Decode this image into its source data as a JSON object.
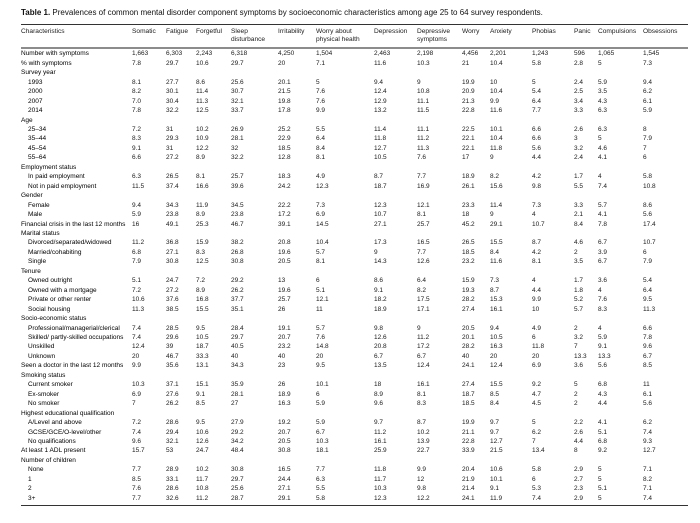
{
  "title": {
    "label": "Table 1.",
    "text": " Prevalences of common mental disorder component symptoms by socioeconomic characteristics among age 25 to 64 survey respondents."
  },
  "table": {
    "columns": [
      {
        "key": "characteristics",
        "label": "Characteristics"
      },
      {
        "key": "somatic",
        "label": "Somatic"
      },
      {
        "key": "fatigue",
        "label": "Fatigue"
      },
      {
        "key": "forgetful",
        "label": "Forgetful"
      },
      {
        "key": "sleep-disturbance",
        "label": "Sleep disturbance"
      },
      {
        "key": "irritability",
        "label": "Irritability"
      },
      {
        "key": "worry-physical-health",
        "label": "Worry about physical health"
      },
      {
        "key": "depression",
        "label": "Depression"
      },
      {
        "key": "depressive-symptoms",
        "label": "Depressive symptoms"
      },
      {
        "key": "worry",
        "label": "Worry"
      },
      {
        "key": "anxiety",
        "label": "Anxiety"
      },
      {
        "key": "phobias",
        "label": "Phobias"
      },
      {
        "key": "panic",
        "label": "Panic"
      },
      {
        "key": "compulsions",
        "label": "Compulsions"
      },
      {
        "key": "obsessions",
        "label": "Obsessions"
      }
    ],
    "rows": [
      {
        "label": "Number with symptoms",
        "values": [
          "1,663",
          "6,303",
          "2,243",
          "6,318",
          "4,250",
          "1,504",
          "2,463",
          "2,198",
          "4,456",
          "2,201",
          "1,243",
          "596",
          "1,065",
          "1,545"
        ]
      },
      {
        "label": "% with symptoms",
        "values": [
          "7.8",
          "29.7",
          "10.6",
          "29.7",
          "20",
          "7.1",
          "11.6",
          "10.3",
          "21",
          "10.4",
          "5.8",
          "2.8",
          "5",
          "7.3"
        ]
      },
      {
        "label": "Survey year",
        "section": true
      },
      {
        "label": "1993",
        "indent": true,
        "values": [
          "8.1",
          "27.7",
          "8.6",
          "25.6",
          "20.1",
          "5",
          "9.4",
          "9",
          "19.9",
          "10",
          "5",
          "2.4",
          "5.9",
          "9.4"
        ]
      },
      {
        "label": "2000",
        "indent": true,
        "values": [
          "8.2",
          "30.1",
          "11.4",
          "30.7",
          "21.5",
          "7.6",
          "12.4",
          "10.8",
          "20.9",
          "10.4",
          "5.4",
          "2.5",
          "3.5",
          "6.2"
        ]
      },
      {
        "label": "2007",
        "indent": true,
        "values": [
          "7.0",
          "30.4",
          "11.3",
          "32.1",
          "19.8",
          "7.6",
          "12.9",
          "11.1",
          "21.3",
          "9.9",
          "6.4",
          "3.4",
          "4.3",
          "6.1"
        ]
      },
      {
        "label": "2014",
        "indent": true,
        "values": [
          "7.8",
          "32.2",
          "12.5",
          "33.7",
          "17.8",
          "9.9",
          "13.2",
          "11.5",
          "22.8",
          "11.6",
          "7.7",
          "3.3",
          "6.3",
          "5.9"
        ]
      },
      {
        "label": "Age",
        "section": true
      },
      {
        "label": "25–34",
        "indent": true,
        "values": [
          "7.2",
          "31",
          "10.2",
          "26.9",
          "25.2",
          "5.5",
          "11.4",
          "11.1",
          "22.5",
          "10.1",
          "6.6",
          "2.6",
          "6.3",
          "8"
        ]
      },
      {
        "label": "35–44",
        "indent": true,
        "values": [
          "8.3",
          "29.3",
          "10.9",
          "28.1",
          "22.9",
          "6.4",
          "11.8",
          "11.2",
          "22.1",
          "10.4",
          "6.6",
          "3",
          "5",
          "7.9"
        ]
      },
      {
        "label": "45–54",
        "indent": true,
        "values": [
          "9.1",
          "31",
          "12.2",
          "32",
          "18.5",
          "8.4",
          "12.7",
          "11.3",
          "22.1",
          "11.8",
          "5.6",
          "3.2",
          "4.6",
          "7"
        ]
      },
      {
        "label": "55–64",
        "indent": true,
        "values": [
          "6.6",
          "27.2",
          "8.9",
          "32.2",
          "12.8",
          "8.1",
          "10.5",
          "7.6",
          "17",
          "9",
          "4.4",
          "2.4",
          "4.1",
          "6"
        ]
      },
      {
        "label": "Employment status",
        "section": true
      },
      {
        "label": "In paid employment",
        "indent": true,
        "values": [
          "6.3",
          "26.5",
          "8.1",
          "25.7",
          "18.3",
          "4.9",
          "8.7",
          "7.7",
          "18.9",
          "8.2",
          "4.2",
          "1.7",
          "4",
          "5.8"
        ]
      },
      {
        "label": "Not in paid employment",
        "indent": true,
        "values": [
          "11.5",
          "37.4",
          "16.6",
          "39.6",
          "24.2",
          "12.3",
          "18.7",
          "16.9",
          "26.1",
          "15.6",
          "9.8",
          "5.5",
          "7.4",
          "10.8"
        ]
      },
      {
        "label": "Gender",
        "section": true
      },
      {
        "label": "Female",
        "indent": true,
        "values": [
          "9.4",
          "34.3",
          "11.9",
          "34.5",
          "22.2",
          "7.3",
          "12.3",
          "12.1",
          "23.3",
          "11.4",
          "7.3",
          "3.3",
          "5.7",
          "8.6"
        ]
      },
      {
        "label": "Male",
        "indent": true,
        "values": [
          "5.9",
          "23.8",
          "8.9",
          "23.8",
          "17.2",
          "6.9",
          "10.7",
          "8.1",
          "18",
          "9",
          "4",
          "2.1",
          "4.1",
          "5.6"
        ]
      },
      {
        "label": "Financial crisis in the last 12 months",
        "values": [
          "16",
          "49.1",
          "25.3",
          "46.7",
          "39.1",
          "14.5",
          "27.1",
          "25.7",
          "45.2",
          "29.1",
          "10.7",
          "8.4",
          "7.8",
          "17.4"
        ]
      },
      {
        "label": "Marital status",
        "section": true
      },
      {
        "label": "Divorced/separated/widowed",
        "indent": true,
        "values": [
          "11.2",
          "36.8",
          "15.9",
          "38.2",
          "20.8",
          "10.4",
          "17.3",
          "16.5",
          "26.5",
          "15.5",
          "8.7",
          "4.6",
          "6.7",
          "10.7"
        ]
      },
      {
        "label": "Married/cohabiting",
        "indent": true,
        "values": [
          "6.8",
          "27.1",
          "8.3",
          "26.8",
          "19.6",
          "5.7",
          "9",
          "7.7",
          "18.5",
          "8.4",
          "4.2",
          "2",
          "3.9",
          "6"
        ]
      },
      {
        "label": "Single",
        "indent": true,
        "values": [
          "7.9",
          "30.8",
          "12.5",
          "30.8",
          "20.5",
          "8.1",
          "14.3",
          "12.6",
          "23.2",
          "11.6",
          "8.1",
          "3.5",
          "6.7",
          "7.9"
        ]
      },
      {
        "label": "Tenure",
        "section": true
      },
      {
        "label": "Owned outright",
        "indent": true,
        "values": [
          "5.1",
          "24.7",
          "7.2",
          "29.2",
          "13",
          "6",
          "8.6",
          "6.4",
          "15.9",
          "7.3",
          "4",
          "1.7",
          "3.6",
          "5.4"
        ]
      },
      {
        "label": "Owned with a mortgage",
        "indent": true,
        "values": [
          "7.2",
          "27.2",
          "8.9",
          "26.2",
          "19.6",
          "5.1",
          "9.1",
          "8.2",
          "19.3",
          "8.7",
          "4.4",
          "1.8",
          "4",
          "6.4"
        ]
      },
      {
        "label": "Private or other renter",
        "indent": true,
        "values": [
          "10.6",
          "37.6",
          "16.8",
          "37.7",
          "25.7",
          "12.1",
          "18.2",
          "17.5",
          "28.2",
          "15.3",
          "9.9",
          "5.2",
          "7.6",
          "9.5"
        ]
      },
      {
        "label": "Social housing",
        "indent": true,
        "values": [
          "11.3",
          "38.5",
          "15.5",
          "35.1",
          "26",
          "11",
          "18.9",
          "17.1",
          "27.4",
          "16.1",
          "10",
          "5.7",
          "8.3",
          "11.3"
        ]
      },
      {
        "label": "Socio-economic status",
        "section": true
      },
      {
        "label": "Professional/managerial/clerical",
        "indent": true,
        "values": [
          "7.4",
          "28.5",
          "9.5",
          "28.4",
          "19.1",
          "5.7",
          "9.8",
          "9",
          "20.5",
          "9.4",
          "4.9",
          "2",
          "4",
          "6.6"
        ]
      },
      {
        "label": "Skilled/ partly-skilled occupations",
        "indent": true,
        "values": [
          "7.4",
          "29.6",
          "10.5",
          "29.7",
          "20.7",
          "7.6",
          "12.6",
          "11.2",
          "20.1",
          "10.5",
          "6",
          "3.2",
          "5.9",
          "7.8"
        ]
      },
      {
        "label": "Unskilled",
        "indent": true,
        "values": [
          "12.4",
          "39",
          "18.7",
          "40.5",
          "23.2",
          "14.8",
          "20.8",
          "17.2",
          "28.2",
          "16.3",
          "11.8",
          "7",
          "9.1",
          "9.6"
        ]
      },
      {
        "label": "Unknown",
        "indent": true,
        "values": [
          "20",
          "46.7",
          "33.3",
          "40",
          "40",
          "20",
          "6.7",
          "6.7",
          "40",
          "20",
          "20",
          "13.3",
          "13.3",
          "6.7"
        ]
      },
      {
        "label": "Seen a doctor in the last 12 months",
        "values": [
          "9.9",
          "35.6",
          "13.1",
          "34.3",
          "23",
          "9.5",
          "13.5",
          "12.4",
          "24.1",
          "12.4",
          "6.9",
          "3.6",
          "5.6",
          "8.5"
        ]
      },
      {
        "label": "Smoking status",
        "section": true
      },
      {
        "label": "Current smoker",
        "indent": true,
        "values": [
          "10.3",
          "37.1",
          "15.1",
          "35.9",
          "26",
          "10.1",
          "18",
          "16.1",
          "27.4",
          "15.5",
          "9.2",
          "5",
          "6.8",
          "11"
        ]
      },
      {
        "label": "Ex-smoker",
        "indent": true,
        "values": [
          "6.9",
          "27.6",
          "9.1",
          "28.1",
          "18.9",
          "6",
          "8.9",
          "8.1",
          "18.7",
          "8.5",
          "4.7",
          "2",
          "4.3",
          "6.1"
        ]
      },
      {
        "label": "No smoker",
        "indent": true,
        "values": [
          "7",
          "26.2",
          "8.5",
          "27",
          "16.3",
          "5.9",
          "9.6",
          "8.3",
          "18.5",
          "8.4",
          "4.5",
          "2",
          "4.4",
          "5.6"
        ]
      },
      {
        "label": "Highest educational qualification",
        "section": true
      },
      {
        "label": "A/Level and above",
        "indent": true,
        "values": [
          "7.2",
          "28.6",
          "9.5",
          "27.9",
          "19.2",
          "5.9",
          "9.7",
          "8.7",
          "19.9",
          "9.7",
          "5",
          "2.2",
          "4.1",
          "6.2"
        ]
      },
      {
        "label": "GCSE/GCE/O-level/other",
        "indent": true,
        "values": [
          "7.4",
          "29.4",
          "10.6",
          "29.2",
          "20.7",
          "6.7",
          "11.2",
          "10.2",
          "21.1",
          "9.7",
          "6.2",
          "2.6",
          "5.1",
          "7.4"
        ]
      },
      {
        "label": "No qualifications",
        "indent": true,
        "values": [
          "9.6",
          "32.1",
          "12.6",
          "34.2",
          "20.5",
          "10.3",
          "16.1",
          "13.9",
          "22.8",
          "12.7",
          "7",
          "4.4",
          "6.8",
          "9.3"
        ]
      },
      {
        "label": "At least 1 ADL present",
        "values": [
          "15.7",
          "53",
          "24.7",
          "48.4",
          "30.8",
          "18.1",
          "25.9",
          "22.7",
          "33.9",
          "21.5",
          "13.4",
          "8",
          "9.2",
          "12.7"
        ]
      },
      {
        "label": "Number of children",
        "section": true
      },
      {
        "label": "None",
        "indent": true,
        "values": [
          "7.7",
          "28.9",
          "10.2",
          "30.8",
          "16.5",
          "7.7",
          "11.8",
          "9.9",
          "20.4",
          "10.6",
          "5.8",
          "2.9",
          "5",
          "7.1"
        ]
      },
      {
        "label": "1",
        "indent": true,
        "values": [
          "8.5",
          "33.1",
          "11.7",
          "29.7",
          "24.4",
          "6.3",
          "11.7",
          "12",
          "21.9",
          "10.1",
          "6",
          "2.7",
          "5",
          "8.2"
        ]
      },
      {
        "label": "2",
        "indent": true,
        "values": [
          "7.6",
          "28.6",
          "10.8",
          "25.6",
          "27.1",
          "5.5",
          "10.3",
          "9.8",
          "21.4",
          "9.1",
          "5.3",
          "2.3",
          "5.1",
          "7.1"
        ]
      },
      {
        "label": "3+",
        "indent": true,
        "values": [
          "7.7",
          "32.6",
          "11.2",
          "28.7",
          "29.1",
          "5.8",
          "12.3",
          "12.2",
          "24.1",
          "11.9",
          "7.4",
          "2.9",
          "5",
          "7.4"
        ]
      }
    ]
  }
}
